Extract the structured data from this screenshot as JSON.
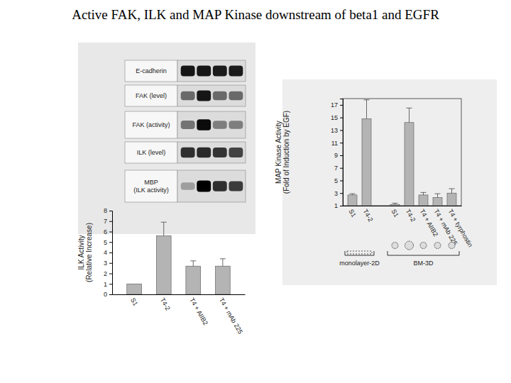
{
  "title": "Active FAK, ILK and MAP Kinase downstream of beta1 and EGFR",
  "blot": {
    "rows": [
      {
        "label": [
          "E-cadherin"
        ],
        "intensity": [
          0.9,
          0.9,
          0.88,
          0.88
        ]
      },
      {
        "label": [
          "FAK (level)"
        ],
        "intensity": [
          0.55,
          0.9,
          0.55,
          0.55
        ]
      },
      {
        "label": [
          "FAK (activity)"
        ],
        "intensity": [
          0.5,
          0.95,
          0.45,
          0.45
        ]
      },
      {
        "label": [
          "ILK (level)"
        ],
        "intensity": [
          0.8,
          0.82,
          0.78,
          0.72
        ]
      },
      {
        "label": [
          "MBP",
          "(ILK activity)"
        ],
        "intensity": [
          0.3,
          1,
          0.8,
          0.75
        ]
      }
    ]
  },
  "chart_data": [
    {
      "type": "bar",
      "y_label": [
        "ILK Activity",
        "(Relative Increase)"
      ],
      "categories": [
        "S1",
        "T4-2",
        "T4 + AIIB2",
        "T4 + mAb 225"
      ],
      "values": [
        1,
        5.6,
        2.7,
        2.7
      ],
      "errors": [
        0,
        1.3,
        0.5,
        0.7
      ],
      "color": "#b4b4b4",
      "ylim": [
        0,
        8
      ],
      "yticks": [
        0,
        1,
        2,
        3,
        4,
        5,
        6,
        7,
        8
      ]
    },
    {
      "type": "bar",
      "y_label": [
        "MAP Kinase Activity",
        "(Fold of Induction by EGF)"
      ],
      "categories": [
        "S1",
        "T4-2",
        null,
        "S1",
        "T4-2",
        "T4 + AIIB2",
        "T4 + mAb 225",
        "T4 + tyrphostin"
      ],
      "values": [
        2.7,
        14.8,
        null,
        1.2,
        14.2,
        2.7,
        2.3,
        3.0
      ],
      "errors": [
        0.2,
        3,
        null,
        0.2,
        2.3,
        0.4,
        0.6,
        0.7
      ],
      "groups": [
        {
          "label": "monolayer-2D",
          "count": 2
        },
        {
          "label": "BM-3D",
          "count": 5
        }
      ],
      "color": "#b4b4b4",
      "ylim": [
        1,
        18
      ],
      "yticks": [
        1,
        3,
        5,
        7,
        9,
        11,
        13,
        15,
        17
      ]
    }
  ]
}
